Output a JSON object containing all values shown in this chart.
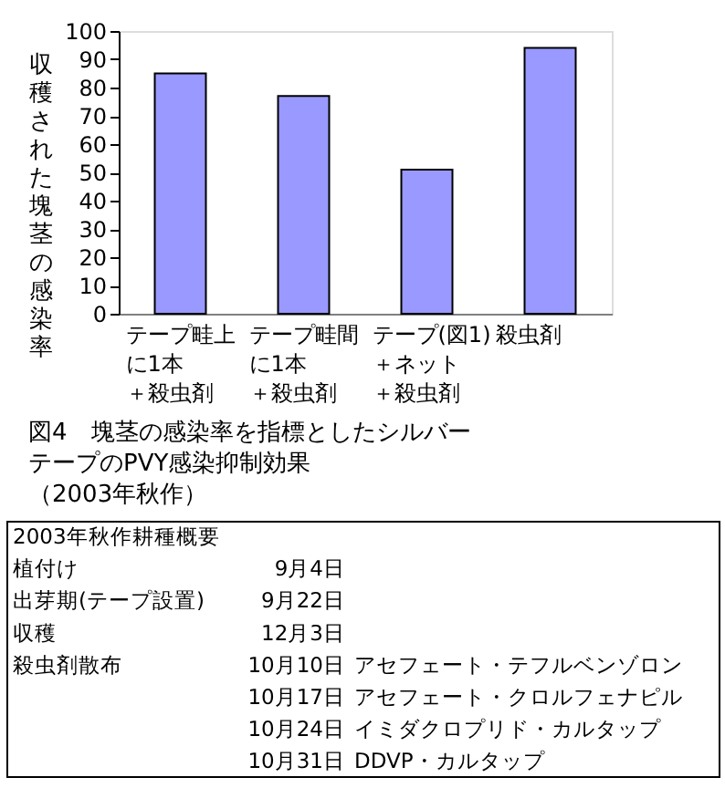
{
  "chart_data": {
    "type": "bar",
    "title": "図4　塊茎の感染率を指標としたシルバーテープのPVY感染抑制効果（2003年秋作）",
    "ylabel": "収穫された塊茎の感染率",
    "categories": [
      "テープ畦上に1本＋殺虫剤",
      "テープ畦間に1本＋殺虫剤",
      "テープ(図1)＋ネット＋殺虫剤",
      "殺虫剤"
    ],
    "values": [
      85,
      77,
      51,
      94
    ],
    "color": "#9999ff",
    "ylim": [
      0,
      100
    ],
    "yticks": [
      0,
      10,
      20,
      30,
      40,
      50,
      60,
      70,
      80,
      90,
      100
    ],
    "grid": false,
    "annotations": [
      "2003年秋作耕種概要",
      "植付け\t9月4日",
      "出芽期(テープ設置)\t9月22日",
      "収穫\t12月3日",
      "殺虫剤散布\t10月10日\tアセフェート・テフルベンゾロン",
      "\t10月17日\tアセフェート・クロルフェナピル",
      "\t10月24日\tイミダクロプリド・カルタップ",
      "\t10月31日\tDDVP・カルタップ"
    ]
  }
}
